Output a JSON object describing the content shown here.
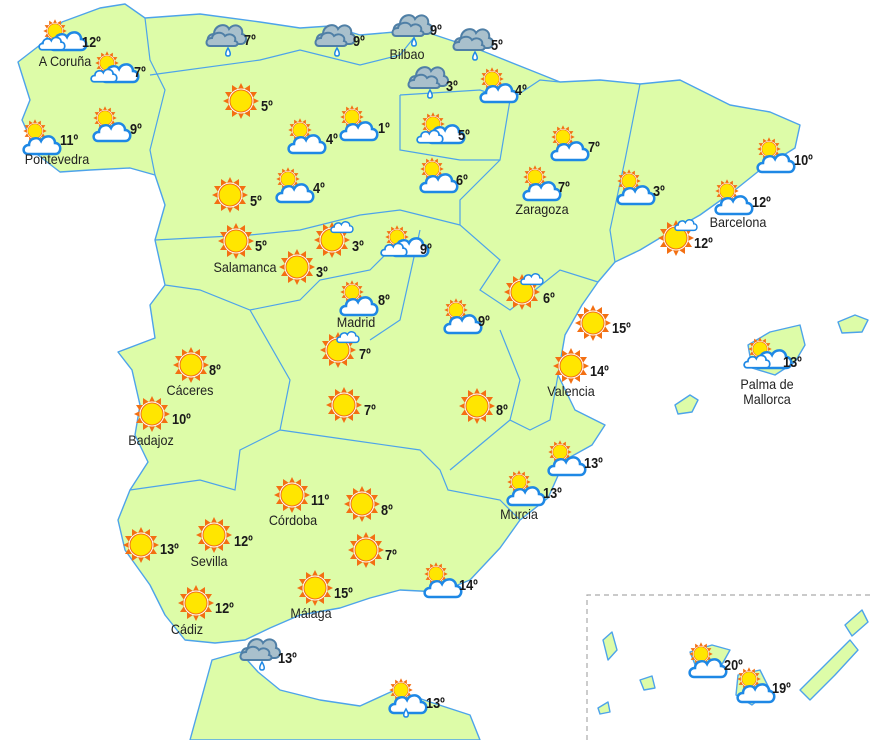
{
  "colors": {
    "land": "#ddfca8",
    "border": "#4da3ea",
    "sun_ray": "#f36f12",
    "sun_core": "#ffe600",
    "cloud_stroke": "#1e88e5",
    "rain_cloud": "#a9c0cc",
    "rain_stroke": "#4f7fa6"
  },
  "stations": [
    {
      "city": "A Coruña",
      "temp": "12º",
      "icon": "sun-clouds"
    },
    {
      "city": "",
      "temp": "7º",
      "icon": "sun-clouds"
    },
    {
      "city": "Pontevedra",
      "temp": "11º",
      "icon": "sun-cloud"
    },
    {
      "city": "",
      "temp": "9º",
      "icon": "sun-cloud"
    },
    {
      "city": "",
      "temp": "7º",
      "icon": "rain"
    },
    {
      "city": "",
      "temp": "9º",
      "icon": "rain"
    },
    {
      "city": "Bilbao",
      "temp": "9º",
      "icon": "rain"
    },
    {
      "city": "",
      "temp": "5º",
      "icon": "rain"
    },
    {
      "city": "",
      "temp": "3º",
      "icon": "rain"
    },
    {
      "city": "",
      "temp": "4º",
      "icon": "sun-cloud"
    },
    {
      "city": "",
      "temp": "5º",
      "icon": "sun"
    },
    {
      "city": "",
      "temp": "4º",
      "icon": "sun-cloud"
    },
    {
      "city": "",
      "temp": "1º",
      "icon": "sun-cloud"
    },
    {
      "city": "",
      "temp": "5º",
      "icon": "sun-clouds"
    },
    {
      "city": "",
      "temp": "6º",
      "icon": "sun-cloud"
    },
    {
      "city": "",
      "temp": "4º",
      "icon": "sun-cloud"
    },
    {
      "city": "",
      "temp": "5º",
      "icon": "sun"
    },
    {
      "city": "Salamanca",
      "temp": "5º",
      "icon": "sun"
    },
    {
      "city": "",
      "temp": "3º",
      "icon": "sun-small-cloud"
    },
    {
      "city": "",
      "temp": "3º",
      "icon": "sun"
    },
    {
      "city": "",
      "temp": "9º",
      "icon": "sun-clouds"
    },
    {
      "city": "Zaragoza",
      "temp": "7º",
      "icon": "sun-cloud"
    },
    {
      "city": "",
      "temp": "7º",
      "icon": "sun-cloud"
    },
    {
      "city": "",
      "temp": "3º",
      "icon": "sun-cloud"
    },
    {
      "city": "",
      "temp": "10º",
      "icon": "sun-cloud"
    },
    {
      "city": "Barcelona",
      "temp": "12º",
      "icon": "sun-cloud"
    },
    {
      "city": "",
      "temp": "12º",
      "icon": "sun-small-cloud"
    },
    {
      "city": "Madrid",
      "temp": "8º",
      "icon": "sun-cloud"
    },
    {
      "city": "",
      "temp": "9º",
      "icon": "sun-cloud"
    },
    {
      "city": "",
      "temp": "6º",
      "icon": "sun-small-cloud"
    },
    {
      "city": "",
      "temp": "15º",
      "icon": "sun"
    },
    {
      "city": "Valencia",
      "temp": "14º",
      "icon": "sun"
    },
    {
      "city": "Palma de Mallorca",
      "temp": "13º",
      "icon": "sun-clouds"
    },
    {
      "city": "",
      "temp": "7º",
      "icon": "sun-small-cloud"
    },
    {
      "city": "Cáceres",
      "temp": "8º",
      "icon": "sun"
    },
    {
      "city": "Badajoz",
      "temp": "10º",
      "icon": "sun"
    },
    {
      "city": "",
      "temp": "7º",
      "icon": "sun"
    },
    {
      "city": "",
      "temp": "8º",
      "icon": "sun"
    },
    {
      "city": "",
      "temp": "13º",
      "icon": "sun-cloud"
    },
    {
      "city": "Murcia",
      "temp": "13º",
      "icon": "sun-cloud"
    },
    {
      "city": "Córdoba",
      "temp": "11º",
      "icon": "sun"
    },
    {
      "city": "",
      "temp": "8º",
      "icon": "sun"
    },
    {
      "city": "Sevilla",
      "temp": "12º",
      "icon": "sun"
    },
    {
      "city": "",
      "temp": "13º",
      "icon": "sun"
    },
    {
      "city": "",
      "temp": "7º",
      "icon": "sun"
    },
    {
      "city": "Cádiz",
      "temp": "12º",
      "icon": "sun"
    },
    {
      "city": "Málaga",
      "temp": "15º",
      "icon": "sun"
    },
    {
      "city": "",
      "temp": "14º",
      "icon": "sun-cloud"
    },
    {
      "city": "",
      "temp": "13º",
      "icon": "rain"
    },
    {
      "city": "",
      "temp": "13º",
      "icon": "sun-cloud-rain"
    },
    {
      "city": "",
      "temp": "20º",
      "icon": "sun-cloud"
    },
    {
      "city": "",
      "temp": "19º",
      "icon": "sun-cloud"
    }
  ]
}
